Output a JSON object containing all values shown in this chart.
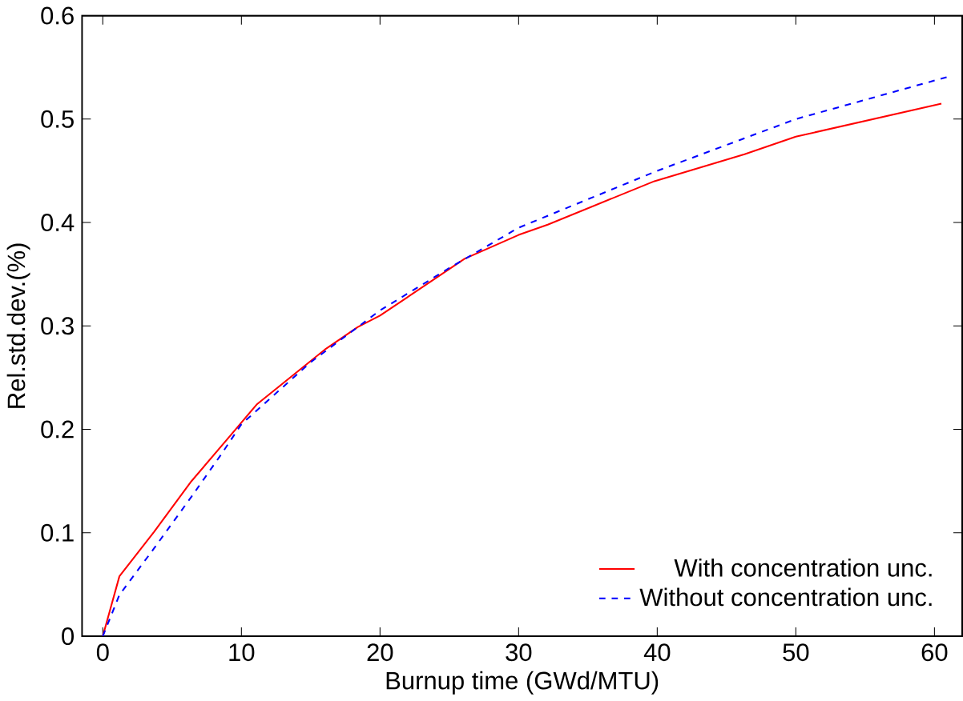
{
  "chart_data": {
    "type": "line",
    "xlabel": "Burnup time (GWd/MTU)",
    "ylabel": "Rel.std.dev.(%)",
    "xlim": [
      -1.5,
      62
    ],
    "ylim": [
      0,
      0.6
    ],
    "xticks": [
      0,
      10,
      20,
      30,
      40,
      50,
      60
    ],
    "yticks": [
      0,
      0.1,
      0.2,
      0.3,
      0.4,
      0.5,
      0.6
    ],
    "legend": "bottom right",
    "grid": false,
    "series": [
      {
        "name": "With concentration unc.",
        "color": "#ff0000",
        "line_style": "solid",
        "x": [
          0,
          1.2,
          3.7,
          6.4,
          9.2,
          11.1,
          16.1,
          18.4,
          20,
          26.1,
          30,
          32.1,
          39.8,
          46.3,
          50,
          60.5
        ],
        "values": [
          0,
          0.058,
          0.101,
          0.15,
          0.194,
          0.224,
          0.278,
          0.299,
          0.31,
          0.365,
          0.388,
          0.398,
          0.44,
          0.466,
          0.483,
          0.515
        ]
      },
      {
        "name": "Without concentration unc.",
        "color": "#0000ff",
        "line_style": "dashed",
        "x": [
          0,
          1.2,
          3.7,
          6.4,
          8.5,
          10,
          15,
          20,
          25,
          30,
          40,
          50,
          61
        ],
        "values": [
          0,
          0.04,
          0.085,
          0.135,
          0.175,
          0.205,
          0.265,
          0.315,
          0.356,
          0.395,
          0.45,
          0.5,
          0.541
        ]
      }
    ]
  }
}
